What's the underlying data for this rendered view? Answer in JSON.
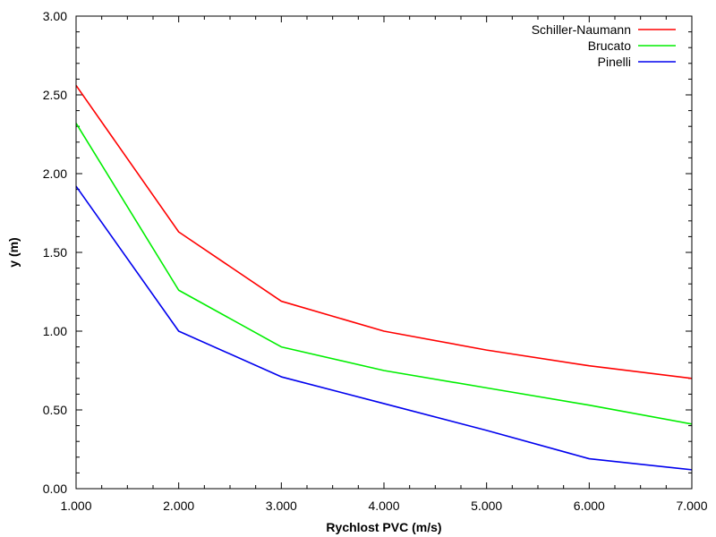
{
  "chart_data": {
    "type": "line",
    "title": "",
    "xlabel": "Rychlost PVC (m/s)",
    "ylabel": "y (m)",
    "xlim": [
      1,
      7
    ],
    "ylim": [
      0,
      3
    ],
    "x_ticks": [
      1,
      2,
      3,
      4,
      5,
      6,
      7
    ],
    "x_tick_labels": [
      "1.000",
      "2.000",
      "3.000",
      "4.000",
      "5.000",
      "6.000",
      "7.000"
    ],
    "y_ticks": [
      0,
      0.5,
      1,
      1.5,
      2,
      2.5,
      3
    ],
    "y_tick_labels": [
      "0.00",
      "0.50",
      "1.00",
      "1.50",
      "2.00",
      "2.50",
      "3.00"
    ],
    "x_minor_per_major": 3,
    "y_minor_per_major": 4,
    "grid": false,
    "legend_position": "top-right",
    "x": [
      1,
      2,
      3,
      4,
      5,
      6,
      7
    ],
    "series": [
      {
        "name": "Schiller-Naumann",
        "color": "#ff0000",
        "values": [
          2.56,
          1.63,
          1.19,
          1.0,
          0.88,
          0.78,
          0.7
        ]
      },
      {
        "name": "Brucato",
        "color": "#00ee00",
        "values": [
          2.32,
          1.26,
          0.9,
          0.75,
          0.64,
          0.53,
          0.41
        ]
      },
      {
        "name": "Pinelli",
        "color": "#0000ee",
        "values": [
          1.92,
          1.0,
          0.71,
          0.54,
          0.37,
          0.19,
          0.12
        ]
      }
    ]
  }
}
